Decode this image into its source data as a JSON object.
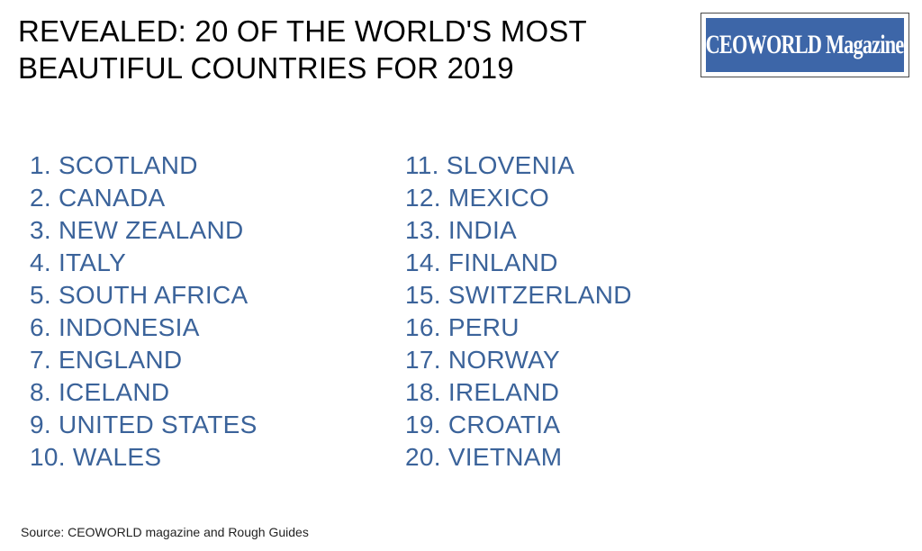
{
  "title": {
    "line1": "REVEALED: 20 OF THE WORLD'S MOST",
    "line2": "BEAUTIFUL COUNTRIES FOR 2019"
  },
  "logo": {
    "text": "CEOWORLD Magazine",
    "bg_color": "#3d66a8",
    "text_color": "#ffffff"
  },
  "colors": {
    "list_text": "#3b639a"
  },
  "rankings": [
    {
      "rank": "1.",
      "country": "SCOTLAND"
    },
    {
      "rank": "2.",
      "country": "CANADA"
    },
    {
      "rank": "3.",
      "country": "NEW ZEALAND"
    },
    {
      "rank": "4.",
      "country": "ITALY"
    },
    {
      "rank": "5.",
      "country": "SOUTH AFRICA"
    },
    {
      "rank": "6.",
      "country": "INDONESIA"
    },
    {
      "rank": "7.",
      "country": "ENGLAND"
    },
    {
      "rank": "8.",
      "country": "ICELAND"
    },
    {
      "rank": "9.",
      "country": "UNITED STATES"
    },
    {
      "rank": "10.",
      "country": "WALES"
    },
    {
      "rank": "11.",
      "country": "SLOVENIA"
    },
    {
      "rank": "12.",
      "country": "MEXICO"
    },
    {
      "rank": "13.",
      "country": "INDIA"
    },
    {
      "rank": "14.",
      "country": "FINLAND"
    },
    {
      "rank": "15.",
      "country": "SWITZERLAND"
    },
    {
      "rank": "16.",
      "country": "PERU"
    },
    {
      "rank": "17.",
      "country": "NORWAY"
    },
    {
      "rank": "18.",
      "country": "IRELAND"
    },
    {
      "rank": "19.",
      "country": "CROATIA"
    },
    {
      "rank": "20.",
      "country": "VIETNAM"
    }
  ],
  "source": "Source: CEOWORLD magazine and Rough Guides"
}
